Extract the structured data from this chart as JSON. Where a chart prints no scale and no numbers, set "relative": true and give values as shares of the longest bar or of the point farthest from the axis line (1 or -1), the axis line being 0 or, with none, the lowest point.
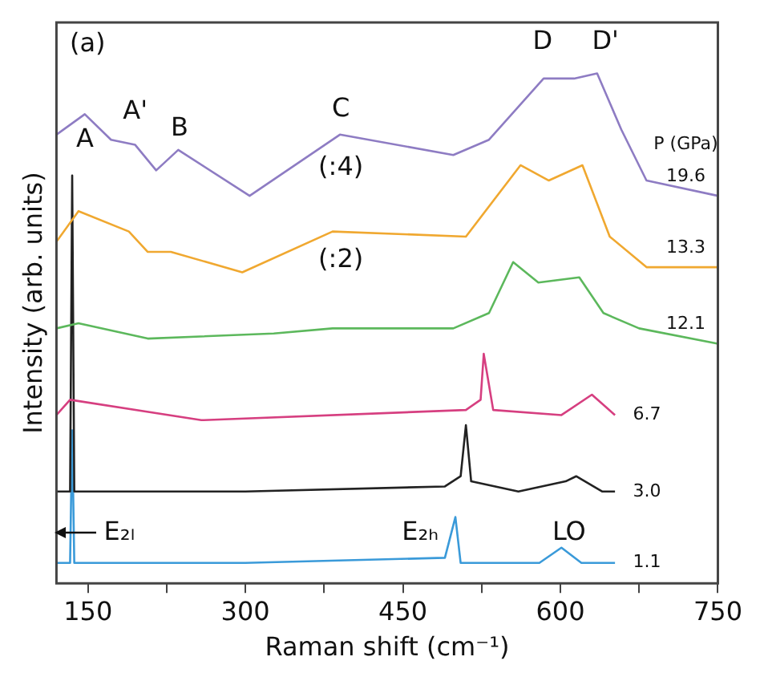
{
  "chart_data": {
    "type": "line",
    "relative": true,
    "xlabel": "Raman shift (cm⁻¹)",
    "ylabel": "Intensity (arb. units)",
    "legend_title": "P (GPa)",
    "legend": false,
    "grid": false,
    "marker": "none",
    "line_style": "solid",
    "xlim": [
      120,
      750
    ],
    "xticks": [
      150,
      {
        "value": 225,
        "label": null
      },
      300,
      {
        "value": 375,
        "label": null
      },
      450,
      {
        "value": 525,
        "label": null
      },
      600,
      {
        "value": 675,
        "label": null
      },
      750
    ],
    "series": [
      {
        "name": "19.6",
        "color": "#8e7cc3",
        "x": [
          120,
          147,
          172,
          195,
          215,
          236,
          304,
          390,
          498,
          532,
          584,
          613,
          635,
          658,
          682,
          750
        ],
        "values": [
          0.88,
          0.92,
          0.87,
          0.86,
          0.81,
          0.85,
          0.76,
          0.88,
          0.84,
          0.87,
          0.99,
          0.99,
          1.0,
          0.89,
          0.79,
          0.76
        ]
      },
      {
        "name": "13.3",
        "color": "#f0a830",
        "x": [
          120,
          141,
          189,
          207,
          229,
          297,
          383,
          510,
          562,
          589,
          621,
          647,
          682,
          750
        ],
        "values": [
          0.67,
          0.73,
          0.69,
          0.65,
          0.65,
          0.61,
          0.69,
          0.68,
          0.82,
          0.79,
          0.82,
          0.68,
          0.62,
          0.62
        ]
      },
      {
        "name": "12.1",
        "color": "#5cb85c",
        "x": [
          120,
          141,
          207,
          327,
          383,
          498,
          532,
          555,
          579,
          618,
          641,
          675,
          750
        ],
        "values": [
          0.5,
          0.51,
          0.48,
          0.49,
          0.5,
          0.5,
          0.53,
          0.63,
          0.59,
          0.6,
          0.53,
          0.5,
          0.47
        ]
      },
      {
        "name": "6.7",
        "color": "#d63f80",
        "x": [
          120,
          133,
          258,
          510,
          524,
          527,
          536,
          601,
          630,
          652
        ],
        "values": [
          0.33,
          0.36,
          0.32,
          0.34,
          0.36,
          0.45,
          0.34,
          0.33,
          0.37,
          0.33
        ]
      },
      {
        "name": "3.0",
        "color": "#222222",
        "x": [
          120,
          133,
          135,
          137,
          300,
          490,
          505,
          510,
          515,
          560,
          605,
          615,
          640,
          652
        ],
        "values": [
          0.18,
          0.18,
          0.8,
          0.18,
          0.18,
          0.19,
          0.21,
          0.31,
          0.2,
          0.18,
          0.2,
          0.21,
          0.18,
          0.18
        ]
      },
      {
        "name": "1.1",
        "color": "#3a9ad9",
        "x": [
          120,
          133,
          135,
          137,
          300,
          490,
          500,
          505,
          580,
          601,
          620,
          652
        ],
        "values": [
          0.04,
          0.04,
          0.3,
          0.04,
          0.04,
          0.05,
          0.13,
          0.04,
          0.04,
          0.07,
          0.04,
          0.04
        ]
      }
    ],
    "annotations": [
      "(a)",
      "A",
      "A'",
      "B",
      "C",
      "D",
      "D'",
      "(:4)",
      "(:2)",
      "E₂ₗ",
      "E₂ₕ",
      "LO"
    ]
  }
}
